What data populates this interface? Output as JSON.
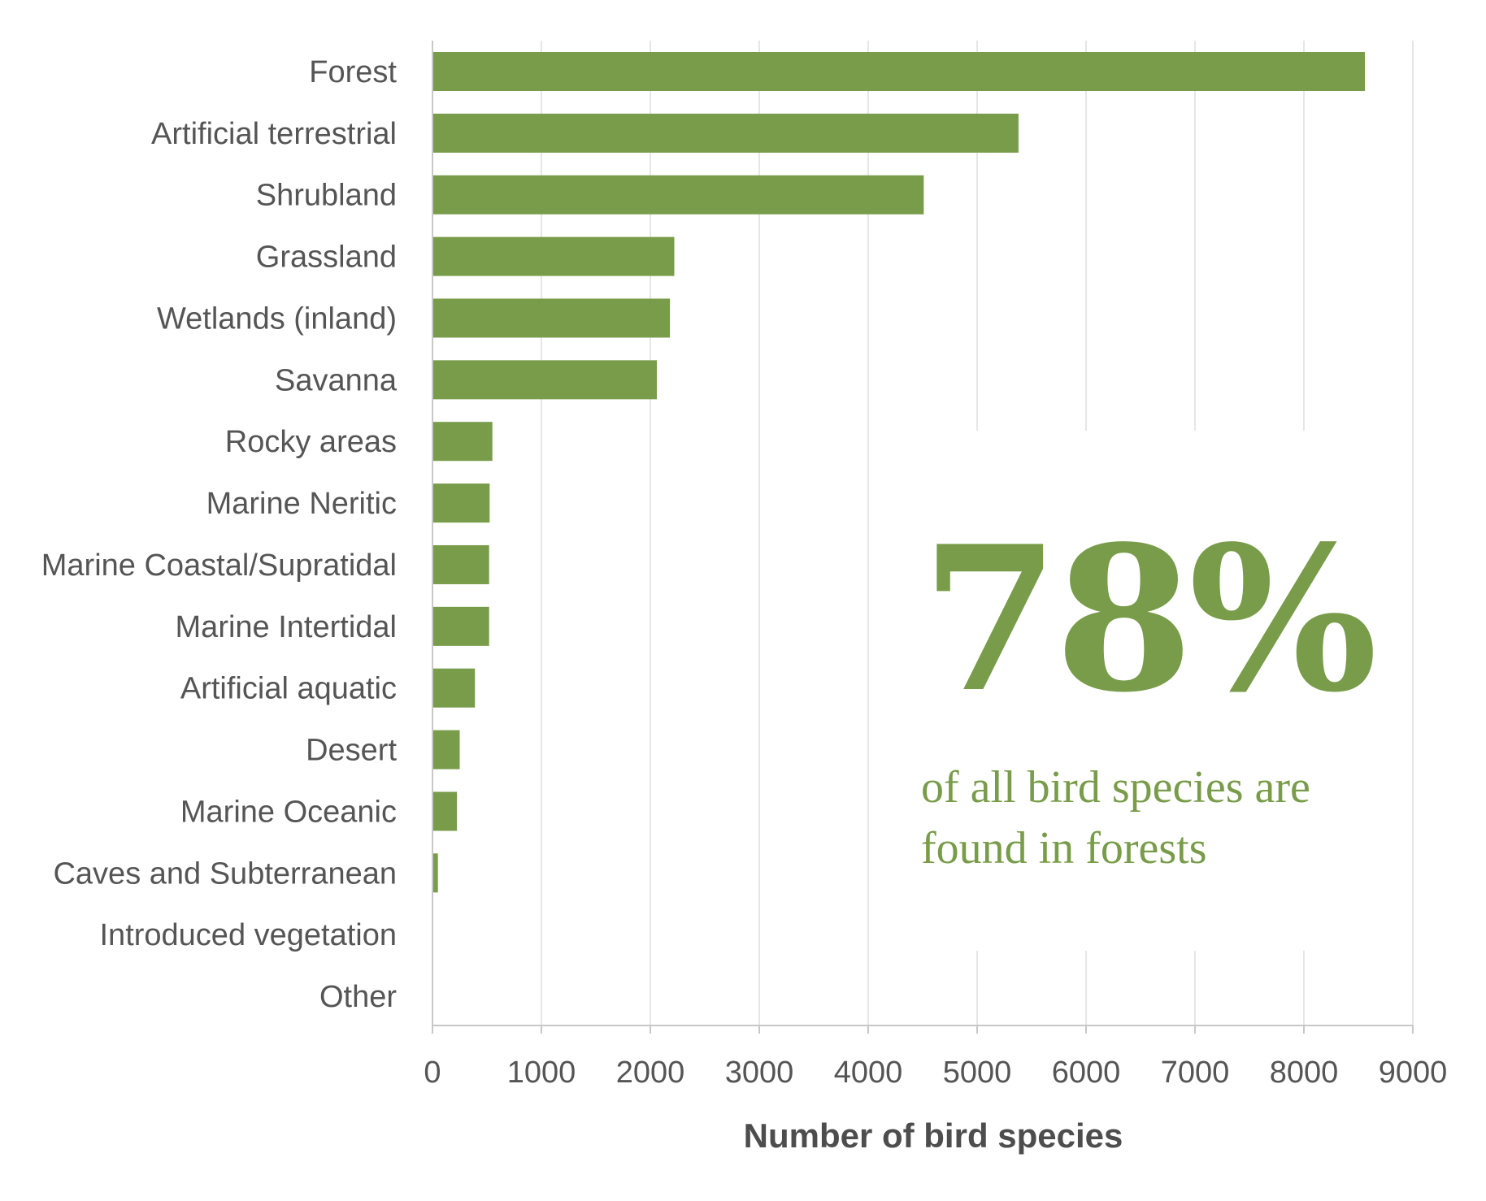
{
  "colors": {
    "bar": "#789c49",
    "accent": "#789c49",
    "grid": "#e6e6e6",
    "axis": "#c8c8c8",
    "text": "#555555"
  },
  "chart_data": {
    "type": "bar",
    "orientation": "horizontal",
    "categories": [
      "Forest",
      "Artificial terrestrial",
      "Shrubland",
      "Grassland",
      "Wetlands (inland)",
      "Savanna",
      "Rocky areas",
      "Marine Neritic",
      "Marine Coastal/Supratidal",
      "Marine Intertidal",
      "Artificial aquatic",
      "Desert",
      "Marine Oceanic",
      "Caves and Subterranean",
      "Introduced vegetation",
      "Other"
    ],
    "values": [
      8560,
      5380,
      4510,
      2220,
      2180,
      2060,
      550,
      525,
      520,
      520,
      390,
      250,
      225,
      50,
      0,
      0
    ],
    "xlabel": "Number of bird species",
    "ylabel": "",
    "xlim": [
      0,
      9000
    ],
    "xticks": [
      "0",
      "1000",
      "2000",
      "3000",
      "4000",
      "5000",
      "6000",
      "7000",
      "8000",
      "9000"
    ],
    "grid": "vertical",
    "legend": "none"
  },
  "callout": {
    "value": "78%",
    "line1": "of all bird species are",
    "line2": "found in forests"
  }
}
